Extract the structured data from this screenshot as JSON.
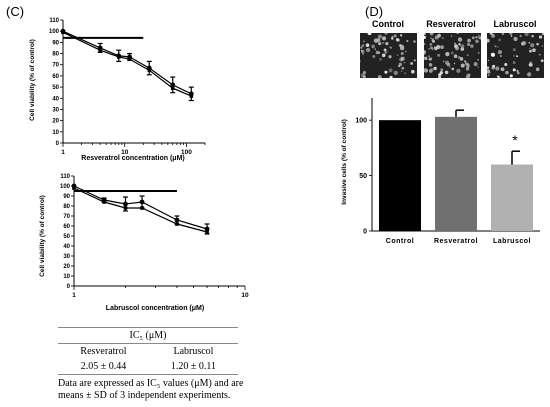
{
  "panel_c_label": "(C)",
  "panel_d_label": "(D)",
  "chart_data": [
    {
      "type": "line",
      "id": "resveratrol-viability",
      "xscale": "log",
      "xlabel": "Resveratrol concentration (μM)",
      "ylabel": "Cell viability (% of control)",
      "ylim": [
        0,
        110
      ],
      "xlim": [
        1,
        200
      ],
      "xticks": [
        "1",
        "10",
        "100"
      ],
      "yticks": [
        "0",
        "10",
        "20",
        "30",
        "40",
        "50",
        "60",
        "70",
        "80",
        "90",
        "100",
        "110"
      ],
      "reference_line": {
        "y": 94,
        "x_end": 20
      },
      "series": [
        {
          "x": [
            1,
            4,
            8,
            12,
            25,
            60,
            120
          ],
          "y": [
            100,
            85,
            78,
            77,
            67,
            52,
            44
          ],
          "err": [
            0,
            4,
            5,
            3,
            6,
            7,
            6
          ]
        },
        {
          "x": [
            1,
            4,
            8,
            12,
            25,
            60,
            120
          ],
          "y": [
            99,
            83,
            77,
            75,
            65,
            49,
            42
          ],
          "err": [
            0,
            0,
            0,
            0,
            0,
            0,
            0
          ]
        }
      ]
    },
    {
      "type": "line",
      "id": "labruscol-viability",
      "xscale": "log",
      "xlabel": "Labruscol concentration (μM)",
      "ylabel": "Cell viability (% of control)",
      "ylim": [
        0,
        110
      ],
      "xlim": [
        1,
        10
      ],
      "xticks": [
        "1",
        "10"
      ],
      "yticks": [
        "0",
        "10",
        "20",
        "30",
        "40",
        "50",
        "60",
        "70",
        "80",
        "90",
        "100",
        "110"
      ],
      "reference_line": {
        "y": 95,
        "x_end": 4
      },
      "series": [
        {
          "x": [
            1,
            1.5,
            2,
            2.5,
            4,
            6
          ],
          "y": [
            100,
            86,
            82,
            84,
            66,
            57
          ],
          "err": [
            0,
            2,
            7,
            6,
            4,
            5
          ]
        },
        {
          "x": [
            1,
            1.5,
            2,
            2.5,
            4,
            6
          ],
          "y": [
            98,
            84,
            78,
            78,
            62,
            54
          ],
          "err": [
            0,
            0,
            0,
            0,
            0,
            0
          ]
        }
      ]
    },
    {
      "type": "bar",
      "id": "invasion",
      "ylabel": "Invasive cells (% of control)",
      "ylim": [
        0,
        120
      ],
      "yticks": [
        "0",
        "50",
        "100"
      ],
      "categories": [
        "Control",
        "Resveratrol",
        "Labruscol"
      ],
      "values": [
        100,
        103,
        60
      ],
      "errors": [
        0,
        6,
        12
      ],
      "significance": [
        "",
        "",
        "*"
      ],
      "colors": [
        "#000000",
        "#707070",
        "#b0b0b0"
      ]
    }
  ],
  "micrographs": {
    "labels": [
      "Control",
      "Resveratrol",
      "Labruscol"
    ]
  },
  "table": {
    "header": "IC₅ (μM)",
    "col1_name": "Resveratrol",
    "col2_name": "Labruscol",
    "col1_value": "2.05 ± 0.44",
    "col2_value": "1.20 ± 0.11"
  },
  "note": "Data are expressed as IC₅ values (μM) and are means ± SD of 3 independent experiments."
}
